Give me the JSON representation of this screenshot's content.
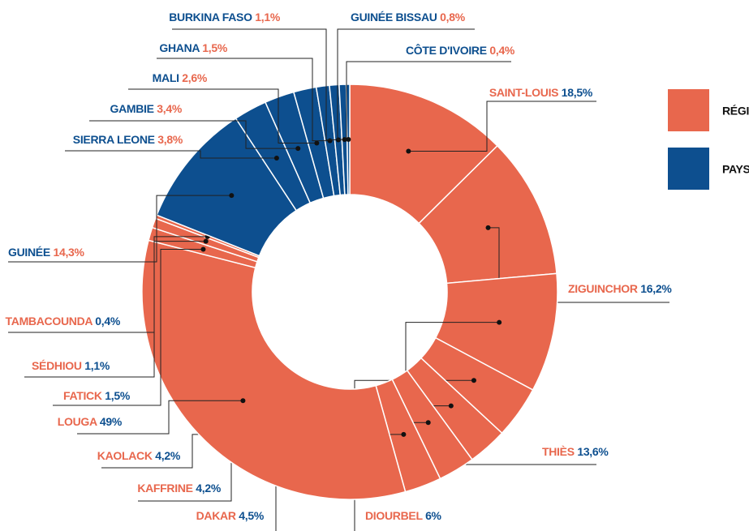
{
  "chart_data": {
    "type": "donut",
    "categories": [
      "SAINT-LOUIS",
      "ZIGUINCHOR",
      "THIÈS",
      "DIOURBEL",
      "DAKAR",
      "KAFFRINE",
      "KAOLACK",
      "LOUGA",
      "FATICK",
      "SÉDHIOU",
      "TAMBACOUNDA",
      "GUINÉE",
      "SIERRA LEONE",
      "GAMBIE",
      "MALI",
      "GHANA",
      "BURKINA FASO",
      "GUINÉE BISSAU",
      "CÔTE D'IVOIRE"
    ],
    "values": [
      18.5,
      16.2,
      13.6,
      6,
      4.5,
      4.2,
      4.2,
      49,
      1.5,
      1.1,
      0.4,
      14.3,
      3.8,
      3.4,
      2.6,
      1.5,
      1.1,
      0.8,
      0.4
    ],
    "value_labels": [
      "18,5%",
      "16,2%",
      "13,6%",
      "6%",
      "4,5%",
      "4,2%",
      "4,2%",
      "49%",
      "1,5%",
      "1,1%",
      "0,4%",
      "14,3%",
      "3,8%",
      "3,4%",
      "2,6%",
      "1,5%",
      "1,1%",
      "0,8%",
      "0,4%"
    ],
    "colors": [
      "#e8674d",
      "#e8674d",
      "#e8674d",
      "#e8674d",
      "#e8674d",
      "#e8674d",
      "#e8674d",
      "#e8674d",
      "#e8674d",
      "#e8674d",
      "#e8674d",
      "#0d4f8f",
      "#0d4f8f",
      "#0d4f8f",
      "#0d4f8f",
      "#0d4f8f",
      "#0d4f8f",
      "#0d4f8f",
      "#0d4f8f"
    ],
    "legend": [
      {
        "name": "RÉGION",
        "color": "#e8674d"
      },
      {
        "name": "PAYS",
        "color": "#0d4f8f"
      }
    ]
  }
}
